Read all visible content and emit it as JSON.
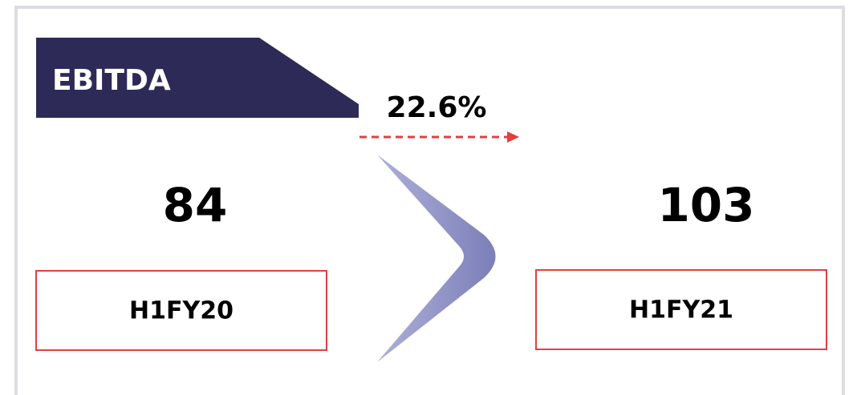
{
  "title": "EBITDA",
  "change": "22.6%",
  "periods": [
    {
      "value": 84,
      "label": "H1FY20"
    },
    {
      "value": 103,
      "label": "H1FY21"
    }
  ]
}
